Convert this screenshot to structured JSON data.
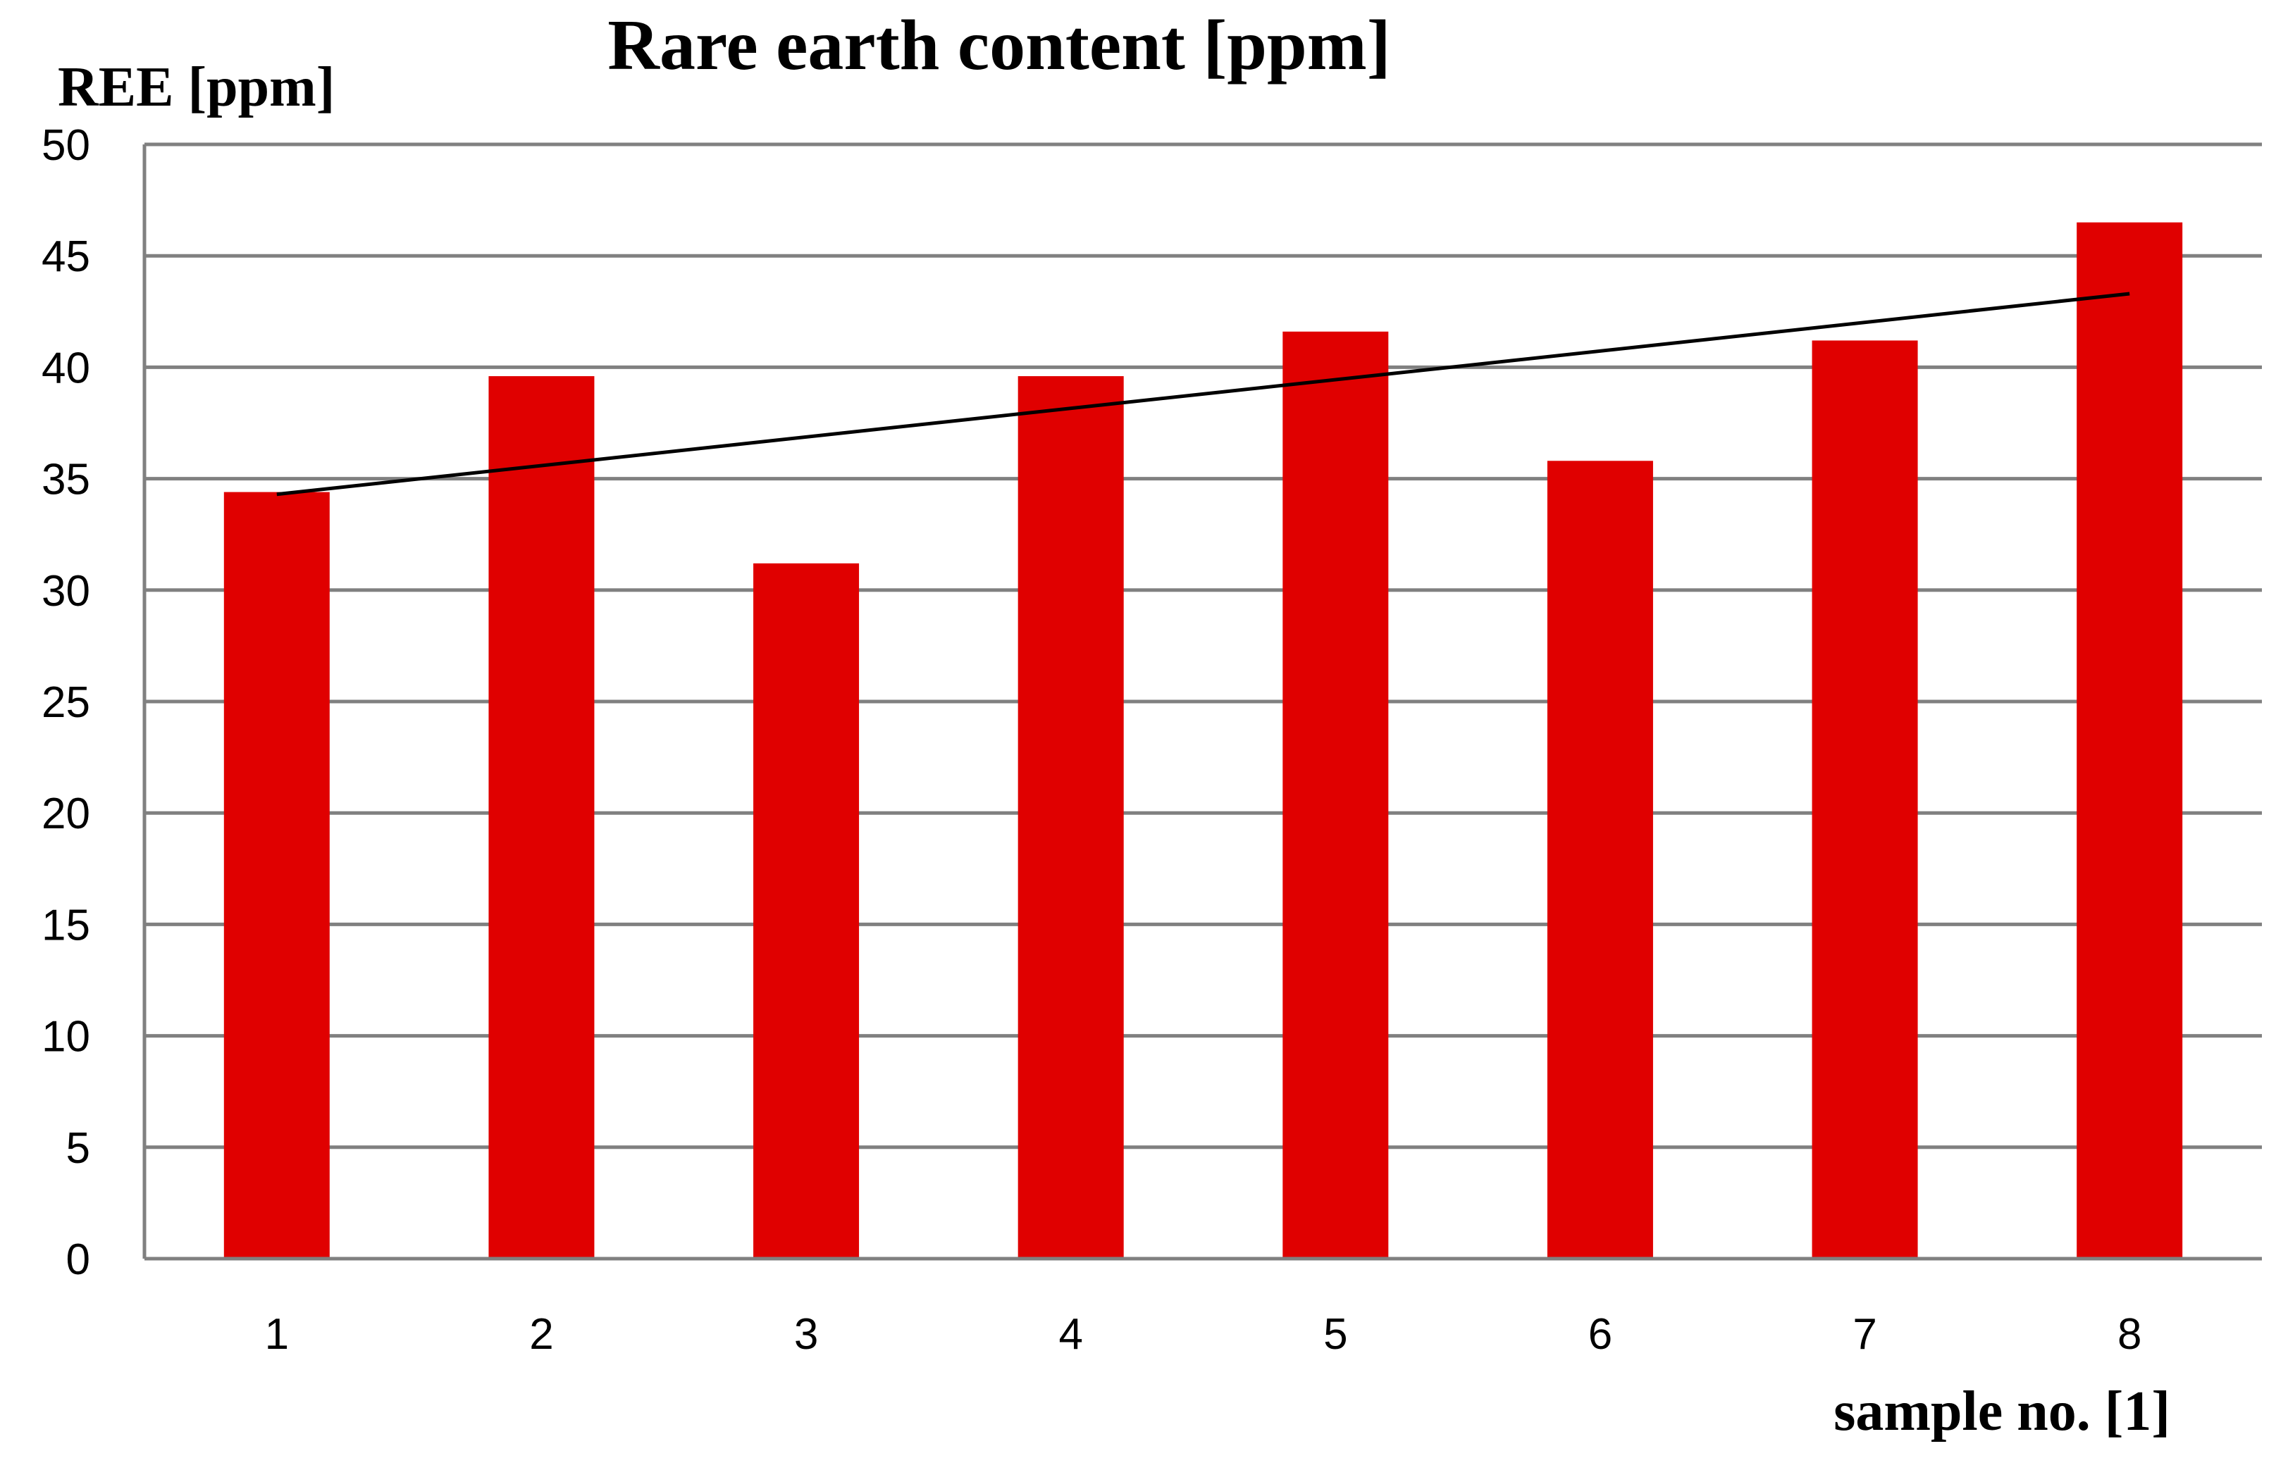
{
  "chart_data": {
    "type": "bar",
    "title": "Rare earth content [ppm]",
    "ylabel": "REE [ppm]",
    "xlabel": "sample no. [1]",
    "categories": [
      "1",
      "2",
      "3",
      "4",
      "5",
      "6",
      "7",
      "8"
    ],
    "values": [
      34.4,
      39.6,
      31.2,
      39.6,
      41.6,
      35.8,
      41.2,
      46.5
    ],
    "ylim": [
      0,
      50
    ],
    "yticks": [
      0,
      5,
      10,
      15,
      20,
      25,
      30,
      35,
      40,
      45,
      50
    ],
    "grid": true,
    "bar_color": "#e00000",
    "trendline": {
      "type": "linear",
      "start": 34.3,
      "end": 43.3,
      "color": "#000000"
    }
  }
}
